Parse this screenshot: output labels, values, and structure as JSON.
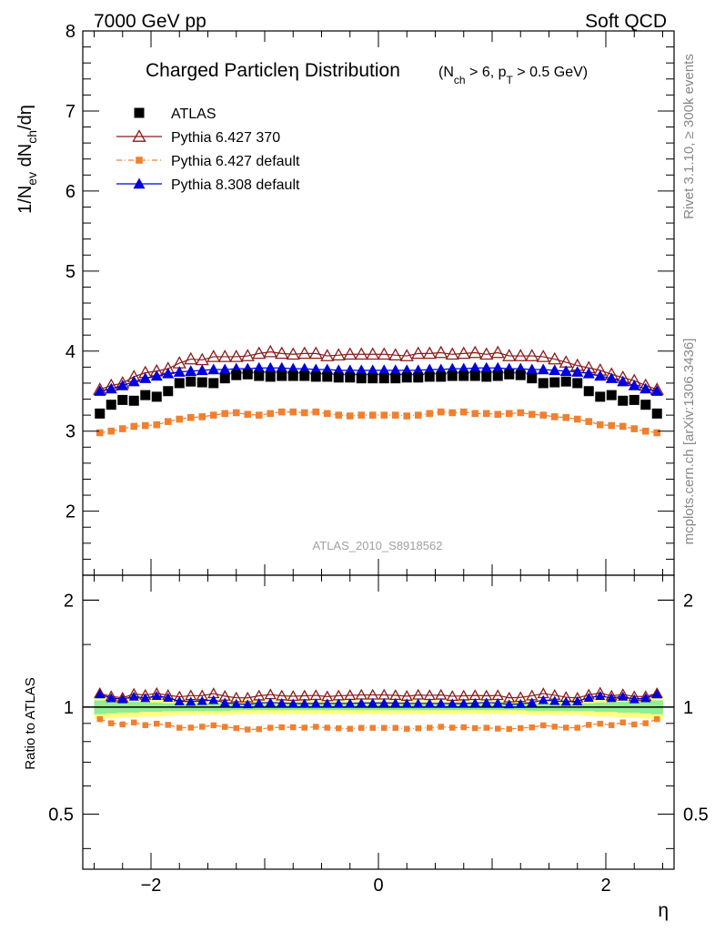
{
  "header": {
    "left": "7000 GeV pp",
    "right": "Soft QCD"
  },
  "side_labels": {
    "rivet": "Rivet 3.1.10, ≥ 300k events",
    "mcplots": "mcplots.cern.ch [arXiv:1306.3436]"
  },
  "chart_data": {
    "type": "scatter",
    "title_main": "Charged Particle η Distribution",
    "title_sub": "(N_ch > 6, p_T > 0.5 GeV)",
    "title_parts": {
      "lead": "Charged Particle",
      "eta": "η",
      "tail": " Distribution",
      "n": "(N",
      "ch": "ch",
      "mid": " > 6, p",
      "t": "T",
      "end": " > 0.5 GeV)"
    },
    "ylabel_parts": {
      "a": "1/N",
      "ev": "ev",
      "b": " dN",
      "ch": "ch",
      "c": "/dη"
    },
    "xlabel": "η",
    "ratio_ylabel": "Ratio to ATLAS",
    "watermark": "ATLAS_2010_S8918562",
    "xlim": [
      -2.6,
      2.6
    ],
    "ylim": [
      1.2,
      8.0
    ],
    "ratio_ylim": [
      0.35,
      2.35
    ],
    "xticks": [
      "−2",
      "0",
      "2"
    ],
    "xtick_values": [
      -2,
      0,
      2
    ],
    "yticks": [
      "2",
      "3",
      "4",
      "5",
      "6",
      "7",
      "8"
    ],
    "ytick_values": [
      2,
      3,
      4,
      5,
      6,
      7,
      8
    ],
    "ratio_yticks": [
      "0.5",
      "1",
      "2"
    ],
    "ratio_ytick_values": [
      0.5,
      1,
      2
    ],
    "x": [
      -2.45,
      -2.35,
      -2.25,
      -2.15,
      -2.05,
      -1.95,
      -1.85,
      -1.75,
      -1.65,
      -1.55,
      -1.45,
      -1.35,
      -1.25,
      -1.15,
      -1.05,
      -0.95,
      -0.85,
      -0.75,
      -0.65,
      -0.55,
      -0.45,
      -0.35,
      -0.25,
      -0.15,
      -0.05,
      0.05,
      0.15,
      0.25,
      0.35,
      0.45,
      0.55,
      0.65,
      0.75,
      0.85,
      0.95,
      1.05,
      1.15,
      1.25,
      1.35,
      1.45,
      1.55,
      1.65,
      1.75,
      1.85,
      1.95,
      2.05,
      2.15,
      2.25,
      2.35,
      2.45
    ],
    "series": [
      {
        "name": "ATLAS",
        "color": "#000000",
        "marker": "square",
        "values": [
          3.22,
          3.33,
          3.39,
          3.38,
          3.45,
          3.43,
          3.5,
          3.6,
          3.62,
          3.61,
          3.6,
          3.66,
          3.7,
          3.71,
          3.69,
          3.68,
          3.69,
          3.69,
          3.69,
          3.68,
          3.68,
          3.67,
          3.67,
          3.66,
          3.66,
          3.66,
          3.66,
          3.67,
          3.67,
          3.68,
          3.68,
          3.69,
          3.69,
          3.69,
          3.68,
          3.69,
          3.71,
          3.7,
          3.66,
          3.6,
          3.61,
          3.62,
          3.6,
          3.5,
          3.43,
          3.45,
          3.38,
          3.39,
          3.33,
          3.22
        ]
      },
      {
        "name": "Pythia 6.427 370",
        "color": "#8b1a1a",
        "marker": "open-triangle",
        "values": [
          3.52,
          3.57,
          3.6,
          3.68,
          3.73,
          3.75,
          3.78,
          3.85,
          3.9,
          3.89,
          3.93,
          3.93,
          3.93,
          3.94,
          3.97,
          3.99,
          3.97,
          3.96,
          3.97,
          3.97,
          3.94,
          3.95,
          3.96,
          3.96,
          3.96,
          3.96,
          3.95,
          3.94,
          3.97,
          3.97,
          3.98,
          3.96,
          3.97,
          3.98,
          3.96,
          3.98,
          3.94,
          3.94,
          3.94,
          3.93,
          3.9,
          3.86,
          3.82,
          3.79,
          3.76,
          3.71,
          3.67,
          3.63,
          3.57,
          3.52
        ]
      },
      {
        "name": "Pythia 6.427 default",
        "color": "#f08030",
        "marker": "small-square",
        "values": [
          2.98,
          3.0,
          3.03,
          3.06,
          3.07,
          3.08,
          3.12,
          3.15,
          3.17,
          3.18,
          3.2,
          3.22,
          3.23,
          3.21,
          3.2,
          3.22,
          3.24,
          3.24,
          3.23,
          3.24,
          3.22,
          3.2,
          3.19,
          3.2,
          3.2,
          3.2,
          3.2,
          3.19,
          3.2,
          3.22,
          3.24,
          3.23,
          3.24,
          3.22,
          3.22,
          3.21,
          3.22,
          3.23,
          3.21,
          3.2,
          3.18,
          3.17,
          3.15,
          3.12,
          3.08,
          3.07,
          3.06,
          3.03,
          3.0,
          2.98
        ]
      },
      {
        "name": "Pythia 8.308 default",
        "color": "#0000dd",
        "marker": "triangle",
        "values": [
          3.5,
          3.53,
          3.57,
          3.62,
          3.66,
          3.69,
          3.72,
          3.74,
          3.75,
          3.76,
          3.77,
          3.77,
          3.78,
          3.78,
          3.79,
          3.79,
          3.79,
          3.78,
          3.78,
          3.77,
          3.77,
          3.76,
          3.76,
          3.76,
          3.76,
          3.76,
          3.76,
          3.76,
          3.76,
          3.77,
          3.77,
          3.78,
          3.78,
          3.79,
          3.79,
          3.79,
          3.78,
          3.78,
          3.77,
          3.77,
          3.76,
          3.75,
          3.74,
          3.72,
          3.69,
          3.66,
          3.62,
          3.57,
          3.53,
          3.5
        ]
      }
    ],
    "ratio_band": {
      "inner_color": "#90ee90",
      "outer_color": "#ffff80",
      "inner_halfwidth": [
        0.045,
        0.04,
        0.035,
        0.035,
        0.03,
        0.03,
        0.025,
        0.025,
        0.025,
        0.025,
        0.025,
        0.025,
        0.02,
        0.02,
        0.02,
        0.02,
        0.02,
        0.02,
        0.02,
        0.02,
        0.02,
        0.02,
        0.02,
        0.02,
        0.02,
        0.02,
        0.02,
        0.02,
        0.02,
        0.02,
        0.02,
        0.02,
        0.02,
        0.02,
        0.02,
        0.02,
        0.02,
        0.02,
        0.025,
        0.025,
        0.025,
        0.025,
        0.025,
        0.025,
        0.03,
        0.03,
        0.035,
        0.035,
        0.04,
        0.045
      ],
      "outer_halfwidth": [
        0.075,
        0.07,
        0.065,
        0.065,
        0.06,
        0.06,
        0.055,
        0.05,
        0.05,
        0.05,
        0.05,
        0.05,
        0.045,
        0.045,
        0.045,
        0.045,
        0.045,
        0.045,
        0.045,
        0.045,
        0.045,
        0.045,
        0.045,
        0.045,
        0.045,
        0.045,
        0.045,
        0.045,
        0.045,
        0.045,
        0.045,
        0.045,
        0.045,
        0.045,
        0.045,
        0.045,
        0.045,
        0.045,
        0.05,
        0.05,
        0.05,
        0.05,
        0.05,
        0.055,
        0.06,
        0.06,
        0.065,
        0.065,
        0.07,
        0.075
      ]
    }
  }
}
